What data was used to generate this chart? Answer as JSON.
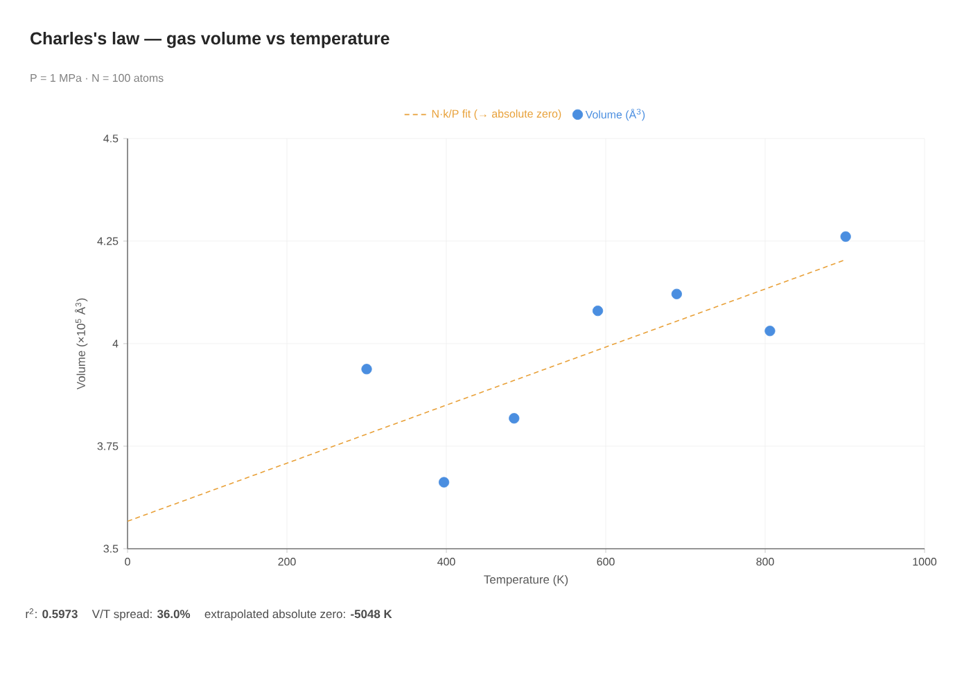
{
  "chart_data": {
    "type": "scatter",
    "title": "Charles's law — gas volume vs temperature",
    "subtitle": "P = 1 MPa · N = 100 atoms",
    "xlabel": "Temperature (K)",
    "ylabel": "Volume (×10$^{5}$ Å$^{3}$)",
    "series": [
      {
        "name": "N·k/P fit (→ absolute zero)",
        "type": "line",
        "color": "#e8a038",
        "line_style": "dashed",
        "marker": "none",
        "x": [
          0,
          900
        ],
        "values": [
          3.567,
          4.204
        ]
      },
      {
        "name": "Volume (Å$^{3}$)",
        "type": "scatter",
        "color": "#4a8ee0",
        "marker": "circle",
        "x": [
          300,
          397,
          485,
          590,
          689,
          806,
          901
        ],
        "values": [
          3.938,
          3.662,
          3.818,
          4.08,
          4.121,
          4.031,
          4.261
        ]
      }
    ],
    "xlim": [
      0,
      1000
    ],
    "xticks": [
      0,
      200,
      400,
      600,
      800,
      1000
    ],
    "ylim": [
      3.5,
      4.5
    ],
    "yticks": [
      3.5,
      3.75,
      4,
      4.25,
      4.5
    ],
    "grid": true,
    "legend": "top",
    "annotations": [
      "r$^{2}$: **0.5973**",
      "V/T spread: **36.0%**",
      "extrapolated absolute zero: **-5048 K**"
    ]
  }
}
